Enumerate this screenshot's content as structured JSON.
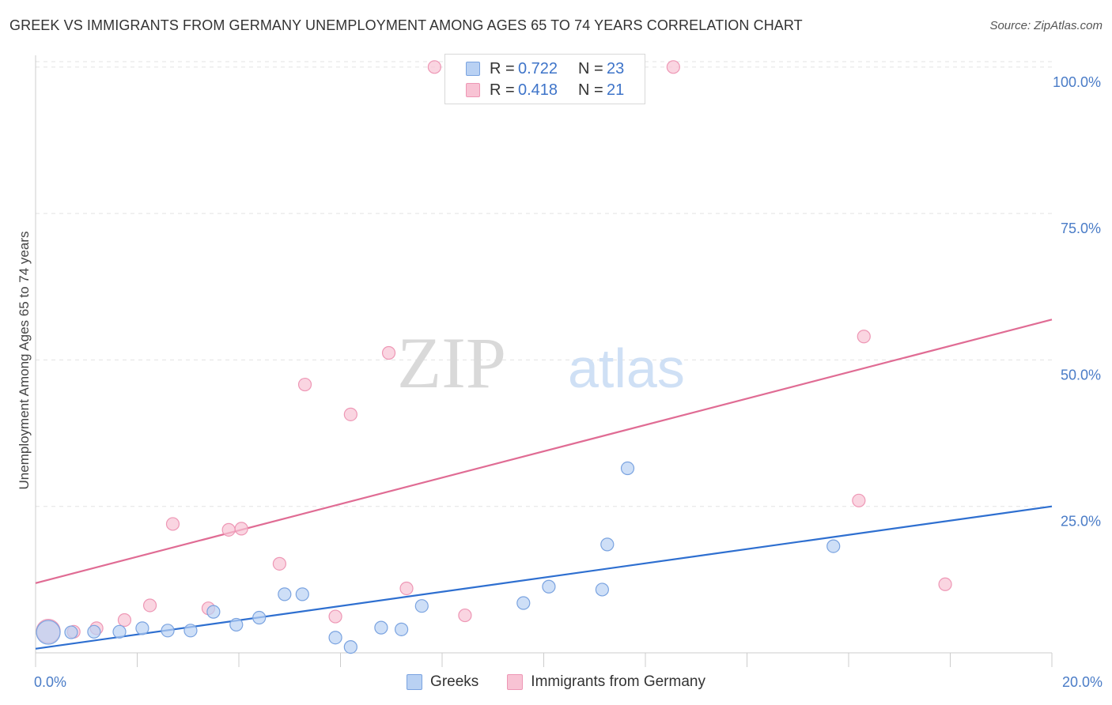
{
  "header": {
    "title": "GREEK VS IMMIGRANTS FROM GERMANY UNEMPLOYMENT AMONG AGES 65 TO 74 YEARS CORRELATION CHART",
    "source": "Source: ZipAtlas.com"
  },
  "watermark": {
    "zip": "ZIP",
    "atlas": "atlas"
  },
  "legend": {
    "r_label": "R =",
    "n_label": "N =",
    "series": [
      {
        "name": "Greeks",
        "r": "0.722",
        "n": "23"
      },
      {
        "name": "Immigrants from Germany",
        "r": "0.418",
        "n": "21"
      }
    ]
  },
  "colors": {
    "greeks_fill": "#b9d1f3",
    "greeks_stroke": "#7aa3e0",
    "greeks_line": "#2e6fd0",
    "germany_fill": "#f8c3d4",
    "germany_stroke": "#ee97b5",
    "germany_line": "#e06c94",
    "tick_text": "#4a7cc7",
    "grid": "#e3e3e3"
  },
  "chart_data": {
    "type": "scatter",
    "title": "GREEK VS IMMIGRANTS FROM GERMANY UNEMPLOYMENT AMONG AGES 65 TO 74 YEARS CORRELATION CHART",
    "xlabel": "",
    "ylabel": "Unemployment Among Ages 65 to 74 years",
    "xlim": [
      0,
      20
    ],
    "ylim": [
      0,
      102
    ],
    "x_tick_labels": [
      "0.0%",
      "20.0%"
    ],
    "y_ticks": [
      25,
      50,
      75,
      100
    ],
    "y_tick_labels": [
      "25.0%",
      "50.0%",
      "75.0%",
      "100.0%"
    ],
    "series": [
      {
        "name": "Greeks",
        "points": [
          {
            "x": 0.25,
            "y": 3.5,
            "big": true
          },
          {
            "x": 0.7,
            "y": 3.5
          },
          {
            "x": 1.15,
            "y": 3.6
          },
          {
            "x": 1.65,
            "y": 3.6
          },
          {
            "x": 2.1,
            "y": 4.2
          },
          {
            "x": 2.6,
            "y": 3.8
          },
          {
            "x": 3.05,
            "y": 3.8
          },
          {
            "x": 3.5,
            "y": 7.0
          },
          {
            "x": 3.95,
            "y": 4.8
          },
          {
            "x": 4.4,
            "y": 6.0
          },
          {
            "x": 4.9,
            "y": 10.0
          },
          {
            "x": 5.25,
            "y": 10.0
          },
          {
            "x": 5.9,
            "y": 2.6
          },
          {
            "x": 6.2,
            "y": 1.0
          },
          {
            "x": 6.8,
            "y": 4.3
          },
          {
            "x": 7.2,
            "y": 4.0
          },
          {
            "x": 7.6,
            "y": 8.0
          },
          {
            "x": 9.6,
            "y": 8.5
          },
          {
            "x": 10.1,
            "y": 11.3
          },
          {
            "x": 11.15,
            "y": 10.8
          },
          {
            "x": 11.25,
            "y": 18.5
          },
          {
            "x": 11.65,
            "y": 31.5
          },
          {
            "x": 15.7,
            "y": 18.2
          }
        ],
        "trend": {
          "x": [
            0,
            20
          ],
          "y": [
            0.7,
            25.0
          ]
        }
      },
      {
        "name": "Immigrants from Germany",
        "points": [
          {
            "x": 0.25,
            "y": 3.7,
            "big": true
          },
          {
            "x": 0.75,
            "y": 3.6
          },
          {
            "x": 1.2,
            "y": 4.2
          },
          {
            "x": 1.75,
            "y": 5.6
          },
          {
            "x": 2.25,
            "y": 8.1
          },
          {
            "x": 2.7,
            "y": 22.0
          },
          {
            "x": 3.4,
            "y": 7.6
          },
          {
            "x": 3.8,
            "y": 21.0
          },
          {
            "x": 4.05,
            "y": 21.2
          },
          {
            "x": 4.8,
            "y": 15.2
          },
          {
            "x": 5.3,
            "y": 45.8
          },
          {
            "x": 5.9,
            "y": 6.2
          },
          {
            "x": 6.2,
            "y": 40.7
          },
          {
            "x": 6.95,
            "y": 51.2
          },
          {
            "x": 7.3,
            "y": 11.0
          },
          {
            "x": 7.85,
            "y": 100.0
          },
          {
            "x": 8.45,
            "y": 6.4
          },
          {
            "x": 12.55,
            "y": 100.0
          },
          {
            "x": 16.2,
            "y": 26.0
          },
          {
            "x": 16.3,
            "y": 54.0
          },
          {
            "x": 17.9,
            "y": 11.7
          }
        ],
        "trend": {
          "x": [
            0,
            20
          ],
          "y": [
            11.9,
            56.9
          ]
        }
      }
    ]
  }
}
